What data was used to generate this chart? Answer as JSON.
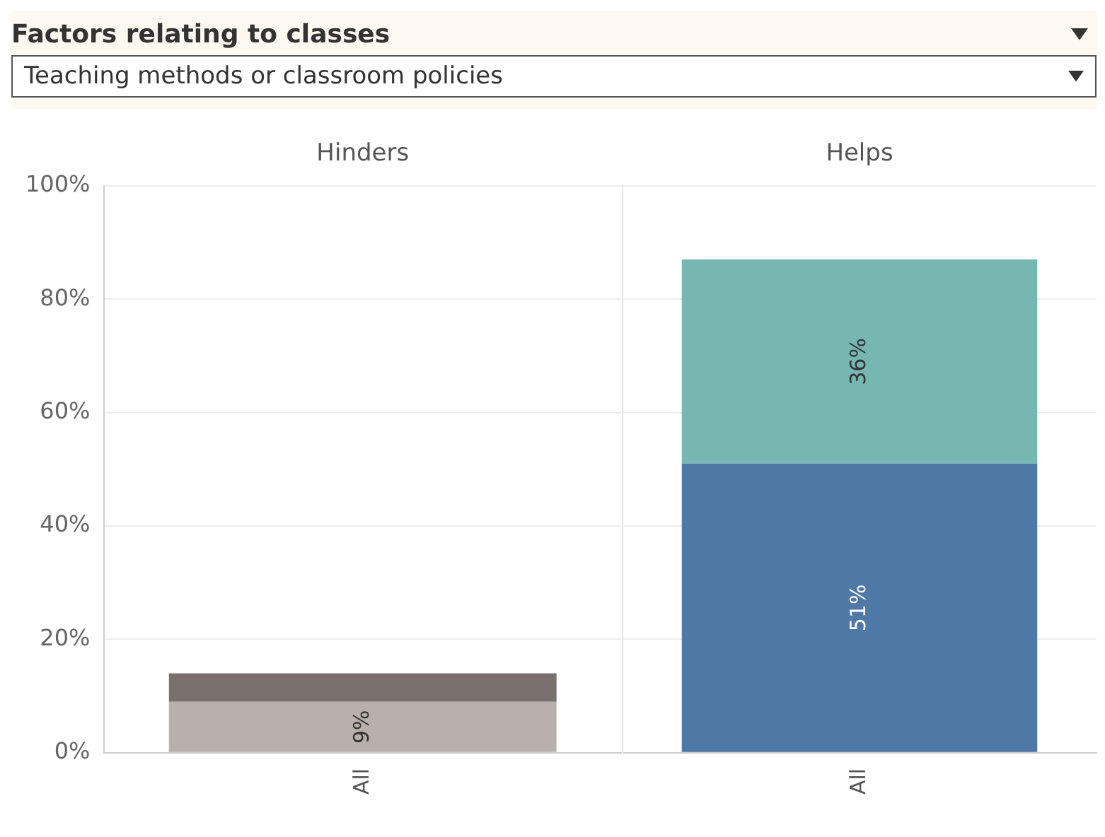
{
  "chart_data": [
    {
      "type": "bar",
      "title": "Hinders",
      "annotations": [
        "Factors relating to classes",
        "Teaching methods or classroom policies"
      ],
      "categories": [
        "All"
      ],
      "stacked": true,
      "ylim": [
        0,
        100
      ],
      "yticks": [
        {
          "value": 0,
          "label": "0%"
        },
        {
          "value": 20,
          "label": "20%"
        },
        {
          "value": 40,
          "label": "40%"
        },
        {
          "value": 60,
          "label": "60%"
        },
        {
          "value": 80,
          "label": "80%"
        },
        {
          "value": 100,
          "label": "100%"
        }
      ],
      "grid": "y",
      "series": [
        {
          "color": "#bab0ab",
          "values": [
            9
          ],
          "value_labels": [
            "9%"
          ]
        },
        {
          "color": "#79706e",
          "values": [
            5
          ],
          "value_labels": [
            null
          ]
        }
      ]
    },
    {
      "type": "bar",
      "title": "Helps",
      "categories": [
        "All"
      ],
      "stacked": true,
      "ylim": [
        0,
        100
      ],
      "yticks": [
        {
          "value": 0,
          "label": null
        },
        {
          "value": 20,
          "label": null
        },
        {
          "value": 40,
          "label": null
        },
        {
          "value": 60,
          "label": null
        },
        {
          "value": 80,
          "label": null
        },
        {
          "value": 100,
          "label": null
        }
      ],
      "grid": "y",
      "tick_labels": "x",
      "series": [
        {
          "color": "#4e79a7",
          "values": [
            51
          ],
          "value_labels": [
            "51%"
          ]
        },
        {
          "color": "#76b7b2",
          "values": [
            36
          ],
          "value_labels": [
            "36%"
          ]
        }
      ]
    }
  ]
}
